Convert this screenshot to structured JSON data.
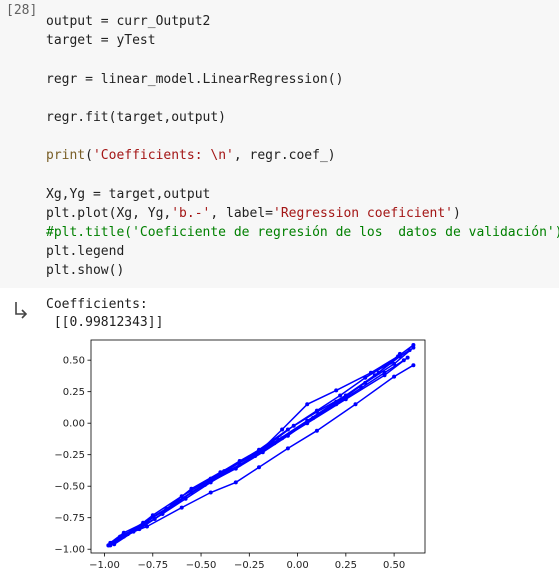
{
  "cell": {
    "execution_count": "[28]",
    "code_lines": [
      [
        {
          "t": "output = curr_Output2",
          "c": ""
        }
      ],
      [
        {
          "t": "target = yTest",
          "c": ""
        }
      ],
      [
        {
          "t": "",
          "c": ""
        }
      ],
      [
        {
          "t": "regr = linear_model.LinearRegression()",
          "c": ""
        }
      ],
      [
        {
          "t": "",
          "c": ""
        }
      ],
      [
        {
          "t": "regr.fit(target,output)",
          "c": ""
        }
      ],
      [
        {
          "t": "",
          "c": ""
        }
      ],
      [
        {
          "t": "print",
          "c": "fn"
        },
        {
          "t": "(",
          "c": ""
        },
        {
          "t": "'Coefficients: \\n'",
          "c": "str"
        },
        {
          "t": ", regr.coef_)",
          "c": ""
        }
      ],
      [
        {
          "t": "",
          "c": ""
        }
      ],
      [
        {
          "t": "Xg,Yg = target,output",
          "c": ""
        }
      ],
      [
        {
          "t": "plt.plot(Xg, Yg,",
          "c": ""
        },
        {
          "t": "'b.-'",
          "c": "str"
        },
        {
          "t": ", label=",
          "c": ""
        },
        {
          "t": "'Regression coeficient'",
          "c": "str"
        },
        {
          "t": ")",
          "c": ""
        }
      ],
      [
        {
          "t": "#plt.title('Coeficiente de regresión de los  datos de validación')",
          "c": "cmt"
        }
      ],
      [
        {
          "t": "plt.legend",
          "c": ""
        }
      ],
      [
        {
          "t": "plt.show()",
          "c": ""
        }
      ]
    ]
  },
  "output": {
    "lines": [
      "Coefficients:",
      " [[0.99812343]]"
    ],
    "icon": "output-arrow-icon"
  },
  "chart_data": {
    "type": "line",
    "title": "",
    "xlabel": "",
    "ylabel": "",
    "xlim": [
      -1.07,
      0.66
    ],
    "ylim": [
      -1.03,
      0.66
    ],
    "xticks": [
      "−1.00",
      "−0.75",
      "−0.50",
      "−0.25",
      "0.00",
      "0.25",
      "0.50"
    ],
    "xtick_values": [
      -1.0,
      -0.75,
      -0.5,
      -0.25,
      0.0,
      0.25,
      0.5
    ],
    "yticks": [
      "0.50",
      "0.25",
      "0.00",
      "−0.25",
      "−0.50",
      "−0.75",
      "−1.00"
    ],
    "ytick_values": [
      0.5,
      0.25,
      0.0,
      -0.25,
      -0.5,
      -0.75,
      -1.0
    ],
    "grid": false,
    "color": "#0000ff",
    "series": [
      {
        "x": [
          -0.98,
          -0.92,
          -0.85,
          -0.75,
          -0.6,
          -0.45,
          -0.3,
          -0.15,
          -0.02,
          0.1,
          0.22,
          0.35,
          0.48,
          0.58
        ],
        "y": [
          -0.97,
          -0.9,
          -0.85,
          -0.73,
          -0.58,
          -0.44,
          -0.3,
          -0.17,
          -0.02,
          0.1,
          0.22,
          0.36,
          0.48,
          0.58
        ]
      },
      {
        "x": [
          -0.97,
          -0.9,
          -0.78,
          -0.62,
          -0.48,
          -0.32,
          -0.18,
          -0.05,
          0.08,
          0.2,
          0.33,
          0.45,
          0.55
        ],
        "y": [
          -0.95,
          -0.87,
          -0.78,
          -0.62,
          -0.49,
          -0.36,
          -0.23,
          -0.1,
          0.04,
          0.15,
          0.28,
          0.4,
          0.5
        ]
      },
      {
        "x": [
          -0.96,
          -0.88,
          -0.8,
          -0.68,
          -0.55,
          -0.4,
          -0.25,
          -0.1,
          0.05,
          0.2,
          0.35,
          0.5,
          0.6
        ],
        "y": [
          -0.95,
          -0.88,
          -0.8,
          -0.68,
          -0.52,
          -0.39,
          -0.27,
          -0.13,
          0.02,
          0.17,
          0.32,
          0.47,
          0.6
        ]
      },
      {
        "x": [
          -0.95,
          -0.85,
          -0.7,
          -0.55,
          -0.38,
          -0.2,
          -0.08,
          0.05,
          0.2,
          0.38,
          0.52,
          0.6
        ],
        "y": [
          -0.96,
          -0.86,
          -0.72,
          -0.55,
          -0.38,
          -0.23,
          -0.05,
          0.15,
          0.26,
          0.4,
          0.53,
          0.62
        ]
      },
      {
        "x": [
          -0.98,
          -0.9,
          -0.82,
          -0.7,
          -0.58,
          -0.45,
          -0.3,
          -0.12,
          0.05,
          0.25,
          0.45,
          0.57
        ],
        "y": [
          -0.97,
          -0.9,
          -0.84,
          -0.72,
          -0.6,
          -0.47,
          -0.33,
          -0.16,
          0.0,
          0.19,
          0.38,
          0.52
        ]
      },
      {
        "x": [
          -0.97,
          -0.9,
          -0.8,
          -0.65,
          -0.5,
          -0.35,
          -0.2,
          -0.05,
          0.1,
          0.25,
          0.4,
          0.53
        ],
        "y": [
          -0.96,
          -0.89,
          -0.79,
          -0.65,
          -0.5,
          -0.36,
          -0.21,
          -0.05,
          0.09,
          0.22,
          0.38,
          0.53
        ]
      },
      {
        "x": [
          -0.97,
          -0.88,
          -0.78,
          -0.6,
          -0.45,
          -0.32,
          -0.2,
          -0.05,
          0.1,
          0.3,
          0.5,
          0.6
        ],
        "y": [
          -0.97,
          -0.88,
          -0.82,
          -0.67,
          -0.55,
          -0.47,
          -0.35,
          -0.2,
          -0.06,
          0.15,
          0.37,
          0.46
        ]
      },
      {
        "x": [
          -0.96,
          -0.86,
          -0.74,
          -0.62,
          -0.5,
          -0.36,
          -0.22,
          -0.08,
          0.08,
          0.24,
          0.42,
          0.53
        ],
        "y": [
          -0.95,
          -0.86,
          -0.76,
          -0.62,
          -0.5,
          -0.38,
          -0.26,
          -0.12,
          0.04,
          0.2,
          0.4,
          0.55
        ]
      }
    ]
  }
}
